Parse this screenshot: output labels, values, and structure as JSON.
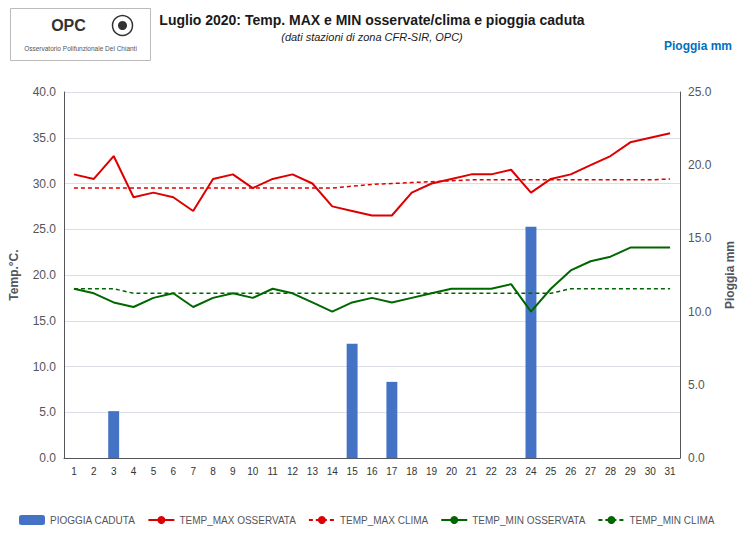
{
  "chart_data": {
    "type": "bar_line",
    "title": "Luglio 2020: Temp. MAX e MIN osservate/clima e pioggia caduta",
    "subtitle": "(dati stazioni di zona CFR-SIR, OPC)",
    "ylabel": "Temp.°C.",
    "y2label": "Pioggia mm",
    "annotations": [
      "Pioggia mm",
      "OPC",
      "Osservatorio Polifunzionale Del Chianti"
    ],
    "categories": [
      "1",
      "2",
      "3",
      "4",
      "5",
      "6",
      "7",
      "8",
      "9",
      "10",
      "11",
      "12",
      "13",
      "14",
      "15",
      "16",
      "17",
      "18",
      "19",
      "20",
      "21",
      "22",
      "23",
      "24",
      "25",
      "26",
      "27",
      "28",
      "29",
      "30",
      "31"
    ],
    "series": [
      {
        "name": "PIOGGIA CADUTA",
        "type": "bar",
        "axis": "y2",
        "color": "#4472C4",
        "values": [
          0,
          0,
          3.2,
          0,
          0,
          0,
          0,
          0,
          0,
          0,
          0,
          0,
          0,
          0,
          7.8,
          0,
          5.2,
          0,
          0,
          0,
          0,
          0,
          0,
          15.8,
          0,
          0,
          0,
          0,
          0,
          0,
          0
        ]
      },
      {
        "name": "TEMP_MAX OSSERVATA",
        "type": "line",
        "color": "#DD0000",
        "line_style": "solid",
        "values": [
          31.0,
          30.5,
          33.0,
          28.5,
          29.0,
          28.5,
          27.0,
          30.5,
          31.0,
          29.5,
          30.5,
          31.0,
          30.0,
          27.5,
          27.0,
          26.5,
          26.5,
          29.0,
          30.0,
          30.5,
          31.0,
          31.0,
          31.5,
          29.0,
          30.5,
          31.0,
          32.0,
          33.0,
          34.5,
          35.0,
          35.5
        ]
      },
      {
        "name": "TEMP_MAX CLIMA",
        "type": "line",
        "color": "#DD0000",
        "line_style": "dashed",
        "values": [
          29.5,
          29.5,
          29.5,
          29.5,
          29.5,
          29.5,
          29.5,
          29.5,
          29.5,
          29.5,
          29.5,
          29.5,
          29.5,
          29.5,
          29.7,
          29.9,
          30.0,
          30.1,
          30.2,
          30.3,
          30.4,
          30.4,
          30.4,
          30.4,
          30.4,
          30.4,
          30.4,
          30.4,
          30.4,
          30.4,
          30.5
        ]
      },
      {
        "name": "TEMP_MIN OSSERVATA",
        "type": "line",
        "color": "#006600",
        "line_style": "solid",
        "values": [
          18.5,
          18.0,
          17.0,
          16.5,
          17.5,
          18.0,
          16.5,
          17.5,
          18.0,
          17.5,
          18.5,
          18.0,
          17.0,
          16.0,
          17.0,
          17.5,
          17.0,
          17.5,
          18.0,
          18.5,
          18.5,
          18.5,
          19.0,
          16.0,
          18.5,
          20.5,
          21.5,
          22.0,
          23.0,
          23.0,
          23.0
        ]
      },
      {
        "name": "TEMP_MIN CLIMA",
        "type": "line",
        "color": "#006600",
        "line_style": "dashed",
        "values": [
          18.5,
          18.5,
          18.5,
          18.0,
          18.0,
          18.0,
          18.0,
          18.0,
          18.0,
          18.0,
          18.0,
          18.0,
          18.0,
          18.0,
          18.0,
          18.0,
          18.0,
          18.0,
          18.0,
          18.0,
          18.0,
          18.0,
          18.0,
          18.0,
          18.0,
          18.5,
          18.5,
          18.5,
          18.5,
          18.5,
          18.5
        ]
      }
    ],
    "ylim": [
      0.0,
      40.0
    ],
    "yticks": [
      {
        "value": 0,
        "label": "0.0"
      },
      {
        "value": 5,
        "label": "5.0"
      },
      {
        "value": 10,
        "label": "10.0"
      },
      {
        "value": 15,
        "label": "15.0"
      },
      {
        "value": 20,
        "label": "20.0"
      },
      {
        "value": 25,
        "label": "25.0"
      },
      {
        "value": 30,
        "label": "30.0"
      },
      {
        "value": 35,
        "label": "35.0"
      },
      {
        "value": 40,
        "label": "40.0"
      }
    ],
    "y2lim": [
      0.0,
      25.0
    ],
    "y2ticks": [
      {
        "value": 0,
        "label": "0.0"
      },
      {
        "value": 5,
        "label": "5.0"
      },
      {
        "value": 10,
        "label": "10.0"
      },
      {
        "value": 15,
        "label": "15.0"
      },
      {
        "value": 20,
        "label": "20.0"
      },
      {
        "value": 25,
        "label": "25.0"
      }
    ],
    "grid": true,
    "legend": "lower left"
  }
}
